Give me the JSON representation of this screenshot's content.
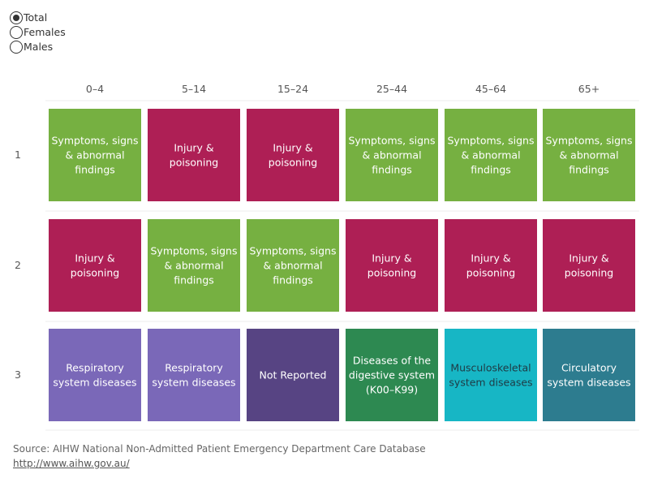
{
  "filter": {
    "options": [
      "Total",
      "Females",
      "Males"
    ],
    "selected": "Total"
  },
  "chart_data": {
    "type": "table",
    "columns": [
      "0–4",
      "5–14",
      "15–24",
      "25–44",
      "45–64",
      "65+"
    ],
    "rows": [
      "1",
      "2",
      "3"
    ],
    "cells": [
      [
        "Symptoms, signs & abnormal findings",
        "Injury & poisoning",
        "Injury & poisoning",
        "Symptoms, signs & abnormal findings",
        "Symptoms, signs & abnormal findings",
        "Symptoms, signs & abnormal findings"
      ],
      [
        "Injury & poisoning",
        "Symptoms, signs & abnormal findings",
        "Symptoms, signs & abnormal findings",
        "Injury & poisoning",
        "Injury & poisoning",
        "Injury & poisoning"
      ],
      [
        "Respiratory system diseases",
        "Respiratory system diseases",
        "Not Reported",
        "Diseases of the digestive system (K00–K99)",
        "Musculoskeletal system diseases",
        "Circulatory system diseases"
      ]
    ],
    "category_colors": {
      "Symptoms, signs & abnormal findings": "#76B041",
      "Injury & poisoning": "#AE1F55",
      "Respiratory system diseases": "#7A68B8",
      "Not Reported": "#574483",
      "Diseases of the digestive system (K00–K99)": "#2D8951",
      "Musculoskeletal system diseases": "#17B6C5",
      "Circulatory system diseases": "#2D7C8F"
    },
    "dark_text_categories": [
      "Musculoskeletal system diseases"
    ]
  },
  "footer": {
    "source": "Source: AIHW National Non-Admitted Patient Emergency Department Care Database",
    "link": "http://www.aihw.gov.au/"
  }
}
